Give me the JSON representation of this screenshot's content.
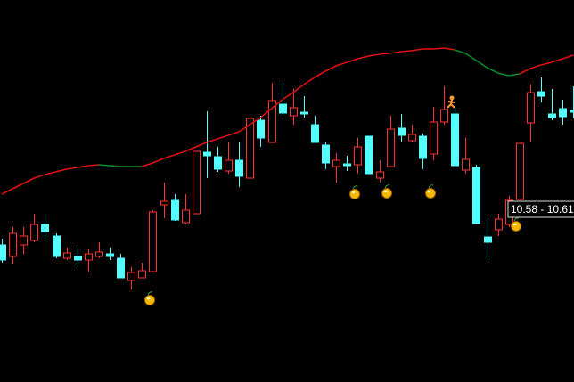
{
  "chart_data": {
    "type": "candlestick",
    "ylim": [
      8.66,
      12.95
    ],
    "up_color": "#ff3232",
    "down_color": "#54ffff",
    "open": [
      10.2,
      10.07,
      10.2,
      10.25,
      10.43,
      10.3,
      10.05,
      10.07,
      10.03,
      10.07,
      10.1,
      10.05,
      9.8,
      9.83,
      9.9,
      10.65,
      10.7,
      10.45,
      10.55,
      11.24,
      11.19,
      11.03,
      11.15,
      10.95,
      11.6,
      11.35,
      11.78,
      11.65,
      11.69,
      11.55,
      11.32,
      11.08,
      11.11,
      11.1,
      11.42,
      10.95,
      11.08,
      11.51,
      11.37,
      11.42,
      11.22,
      11.58,
      11.67,
      11.04,
      11.07,
      10.29,
      10.37,
      10.43,
      10.71,
      11.57,
      11.92,
      11.67,
      11.73,
      11.71
    ],
    "high": [
      10.27,
      10.4,
      10.4,
      10.55,
      10.55,
      10.33,
      10.17,
      10.17,
      10.15,
      10.23,
      10.17,
      10.1,
      9.95,
      10.0,
      10.59,
      10.9,
      10.77,
      10.77,
      11.25,
      11.7,
      11.3,
      11.35,
      11.35,
      11.65,
      11.65,
      12.02,
      12.02,
      11.95,
      11.87,
      11.65,
      11.35,
      11.23,
      11.2,
      11.4,
      11.42,
      11.15,
      11.65,
      11.67,
      11.55,
      11.45,
      11.75,
      11.98,
      11.75,
      11.4,
      11.1,
      10.5,
      10.55,
      10.75,
      11.34,
      12.0,
      12.08,
      11.95,
      11.83,
      11.98
    ],
    "low": [
      10.0,
      9.99,
      10.1,
      10.23,
      10.27,
      10.05,
      10.03,
      9.95,
      9.9,
      10.05,
      10.03,
      9.83,
      9.7,
      9.83,
      9.89,
      10.5,
      10.47,
      10.43,
      10.55,
      10.95,
      11.02,
      11.0,
      10.85,
      10.95,
      11.3,
      11.35,
      11.65,
      11.55,
      11.63,
      11.35,
      11.05,
      10.9,
      11.03,
      11.0,
      11.0,
      10.9,
      11.08,
      11.35,
      11.35,
      11.05,
      11.15,
      11.55,
      11.09,
      11.0,
      10.44,
      10.03,
      10.3,
      10.4,
      10.71,
      11.35,
      11.8,
      11.6,
      11.55,
      11.62
    ],
    "close": [
      10.03,
      10.33,
      10.3,
      10.43,
      10.35,
      10.07,
      10.11,
      10.03,
      10.1,
      10.12,
      10.07,
      9.83,
      9.89,
      9.91,
      10.57,
      10.69,
      10.48,
      10.59,
      11.25,
      11.2,
      11.05,
      11.15,
      10.97,
      11.62,
      11.4,
      11.82,
      11.68,
      11.74,
      11.67,
      11.35,
      11.12,
      11.15,
      11.09,
      11.3,
      11.0,
      11.02,
      11.5,
      11.43,
      11.44,
      11.17,
      11.58,
      11.72,
      11.09,
      11.16,
      10.44,
      10.23,
      10.49,
      10.7,
      11.34,
      11.91,
      11.87,
      11.63,
      11.64,
      11.69
    ],
    "overlay": {
      "values": [
        10.77,
        10.83,
        10.89,
        10.95,
        10.99,
        11.02,
        11.05,
        11.07,
        11.09,
        11.1,
        11.09,
        11.08,
        11.08,
        11.08,
        11.12,
        11.17,
        11.21,
        11.25,
        11.3,
        11.35,
        11.39,
        11.43,
        11.47,
        11.55,
        11.63,
        11.73,
        11.83,
        11.91,
        12.0,
        12.08,
        12.15,
        12.21,
        12.25,
        12.29,
        12.32,
        12.34,
        12.35,
        12.37,
        12.38,
        12.4,
        12.4,
        12.41,
        12.39,
        12.35,
        12.27,
        12.19,
        12.13,
        12.1,
        12.12,
        12.18,
        12.22,
        12.25,
        12.29,
        12.33
      ],
      "colors": [
        "#e01010",
        "#e01010",
        "#e01010",
        "#e01010",
        "#e01010",
        "#e01010",
        "#e01010",
        "#e01010",
        "#e01010",
        "#e01010",
        "#0a8a2a",
        "#0a8a2a",
        "#0a8a2a",
        "#0a8a2a",
        "#e01010",
        "#e01010",
        "#e01010",
        "#e01010",
        "#e01010",
        "#e01010",
        "#e01010",
        "#e01010",
        "#e01010",
        "#e01010",
        "#e01010",
        "#e01010",
        "#e01010",
        "#e01010",
        "#e01010",
        "#e01010",
        "#e01010",
        "#e01010",
        "#e01010",
        "#e01010",
        "#e01010",
        "#e01010",
        "#e01010",
        "#e01010",
        "#e01010",
        "#e01010",
        "#e01010",
        "#e01010",
        "#e01010",
        "#0a8a2a",
        "#0a8a2a",
        "#0a8a2a",
        "#0a8a2a",
        "#0a8a2a",
        "#0a8a2a",
        "#e01010",
        "#e01010",
        "#e01010",
        "#e01010",
        "#e01010"
      ]
    },
    "price_label": "10.58 - 10.61"
  }
}
